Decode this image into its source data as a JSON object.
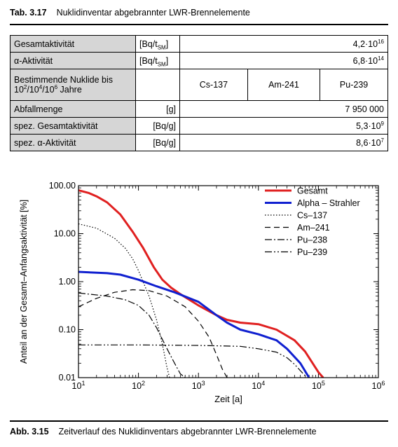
{
  "table_caption": {
    "number": "Tab. 3.17",
    "text": "Nuklidinventar abgebrannter LWR-Brennelemente"
  },
  "table": {
    "rows": [
      {
        "label": "Gesamtaktivität",
        "unit_base": "[Bq/t",
        "unit_sub": "SM",
        "unit_close": "]",
        "value_base": "4,2·10",
        "value_exp": "16"
      },
      {
        "label": "α-Aktivität",
        "unit_base": "[Bq/t",
        "unit_sub": "SM",
        "unit_close": "]",
        "value_base": "6,8·10",
        "value_exp": "14"
      }
    ],
    "nuclide_row": {
      "label_line1": "Bestimmende Nuklide bis",
      "label_line2_parts": [
        "10",
        "2",
        "/10",
        "4",
        "/10",
        "6",
        " Jahre"
      ],
      "nuclides": [
        "Cs-137",
        "Am-241",
        "Pu-239"
      ]
    },
    "rows2": [
      {
        "label": "Abfallmenge",
        "unit": "[g]",
        "value": "7 950 000"
      },
      {
        "label": "spez. Gesamtaktivität",
        "unit": "[Bq/g]",
        "value_base": "5,3·10",
        "value_exp": "9"
      },
      {
        "label": "spez. α-Aktivität",
        "unit": "[Bq/g]",
        "value_base": "8,6·10",
        "value_exp": "7"
      }
    ]
  },
  "figure_caption": {
    "number": "Abb. 3.15",
    "text": "Zeitverlauf des Nuklidinventars abgebrannter LWR-Brennelemente"
  },
  "chart_data": {
    "type": "line",
    "xlabel": "Zeit [a]",
    "ylabel": "Anteil an der Gesamt–Anfangsaktivität [%]",
    "x_scale": "log",
    "y_scale": "log",
    "xlim": [
      10,
      1000000
    ],
    "ylim": [
      0.01,
      100
    ],
    "x_ticks": [
      {
        "base": "10",
        "exp": "1"
      },
      {
        "base": "10",
        "exp": "2"
      },
      {
        "base": "10",
        "exp": "3"
      },
      {
        "base": "10",
        "exp": "4"
      },
      {
        "base": "10",
        "exp": "5"
      },
      {
        "base": "10",
        "exp": "6"
      }
    ],
    "y_ticks": [
      "100.00",
      "10.00",
      "1.00",
      "0.10",
      "0.01"
    ],
    "legend_position": "top-right",
    "series": [
      {
        "name": "Gesamt",
        "color": "#e02020",
        "dash": "solid",
        "width": 3,
        "x": [
          10,
          15,
          20,
          30,
          50,
          80,
          120,
          180,
          250,
          350,
          500,
          1000,
          2000,
          3000,
          5000,
          10000,
          20000,
          40000,
          60000,
          100000,
          120000
        ],
        "y": [
          80,
          70,
          60,
          45,
          25,
          11,
          5,
          2,
          1.1,
          0.75,
          0.55,
          0.32,
          0.2,
          0.16,
          0.14,
          0.13,
          0.1,
          0.06,
          0.035,
          0.013,
          0.01
        ]
      },
      {
        "name": "Alpha – Strahler",
        "color": "#1020d0",
        "dash": "solid",
        "width": 3,
        "x": [
          10,
          30,
          50,
          100,
          200,
          400,
          1000,
          2000,
          3000,
          5000,
          10000,
          20000,
          30000,
          50000,
          70000
        ],
        "y": [
          1.6,
          1.5,
          1.4,
          1.1,
          0.8,
          0.6,
          0.38,
          0.2,
          0.14,
          0.1,
          0.08,
          0.06,
          0.04,
          0.02,
          0.01
        ]
      },
      {
        "name": "Cs–137",
        "color": "#000000",
        "dash": "1.5,2.5",
        "width": 1.2,
        "x": [
          10,
          20,
          40,
          60,
          80,
          100,
          150,
          200,
          250,
          300,
          330
        ],
        "y": [
          16,
          13,
          8,
          5,
          3,
          1.7,
          0.5,
          0.16,
          0.05,
          0.016,
          0.01
        ]
      },
      {
        "name": "Am–241",
        "color": "#000000",
        "dash": "8,5",
        "width": 1.2,
        "x": [
          10,
          20,
          40,
          80,
          150,
          300,
          600,
          1000,
          1500,
          2000,
          2500,
          3000
        ],
        "y": [
          0.3,
          0.45,
          0.6,
          0.68,
          0.65,
          0.5,
          0.3,
          0.15,
          0.07,
          0.03,
          0.015,
          0.01
        ]
      },
      {
        "name": "Pu–238",
        "color": "#000000",
        "dash": "10,3,2,3",
        "width": 1.2,
        "x": [
          10,
          30,
          60,
          100,
          150,
          200,
          300,
          400,
          500,
          600
        ],
        "y": [
          0.58,
          0.5,
          0.42,
          0.32,
          0.2,
          0.11,
          0.04,
          0.02,
          0.012,
          0.01
        ]
      },
      {
        "name": "Pu–239",
        "color": "#000000",
        "dash": "10,3,2,3,2,3",
        "width": 1.2,
        "x": [
          10,
          100,
          1000,
          5000,
          10000,
          20000,
          30000,
          40000,
          50000,
          60000,
          70000
        ],
        "y": [
          0.048,
          0.048,
          0.047,
          0.045,
          0.04,
          0.034,
          0.026,
          0.019,
          0.014,
          0.011,
          0.009
        ]
      }
    ]
  }
}
